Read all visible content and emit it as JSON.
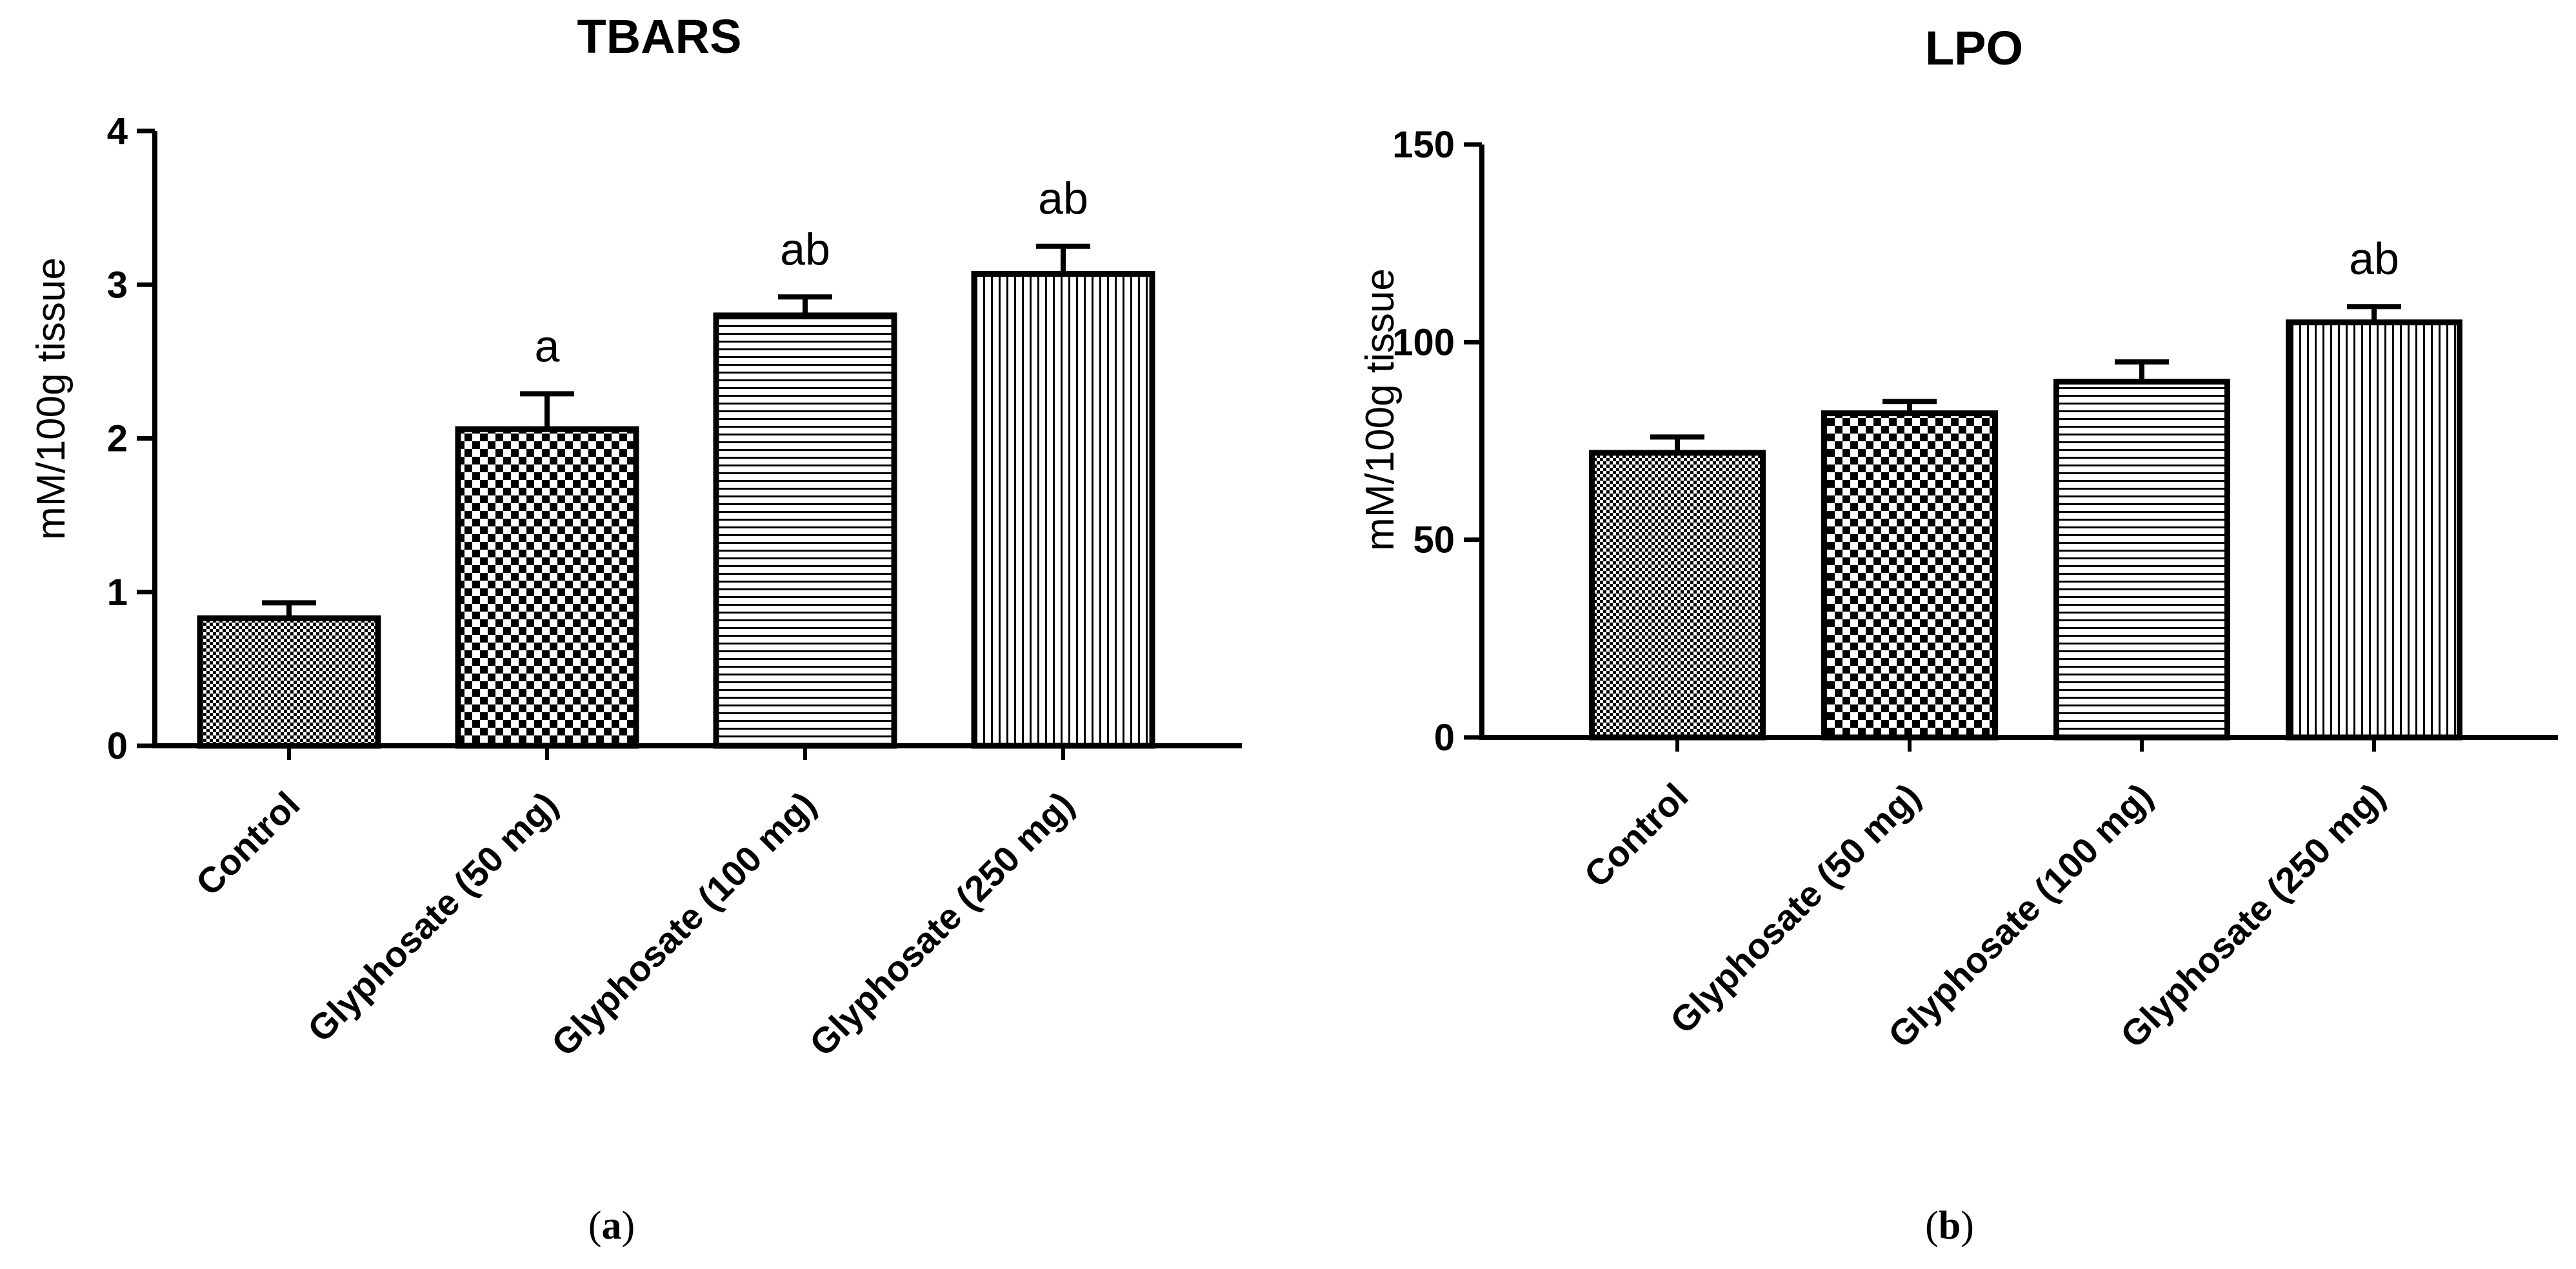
{
  "figure": {
    "panels": [
      {
        "caption_open": "(",
        "caption_letter": "a",
        "caption_close": ")"
      },
      {
        "caption_open": "(",
        "caption_letter": "b",
        "caption_close": ")"
      }
    ]
  },
  "chart_data": [
    {
      "type": "bar",
      "title": "TBARS",
      "xlabel": "",
      "ylabel": "mM/100g tissue",
      "ylim": [
        0,
        4
      ],
      "yticks": [
        0,
        1,
        2,
        3,
        4
      ],
      "categories": [
        "Control",
        "Glyphosate (50 mg)",
        "Glyphosate (100 mg)",
        "Glyphosate (250 mg)"
      ],
      "values": [
        0.83,
        2.06,
        2.8,
        3.07
      ],
      "errors": [
        0.1,
        0.23,
        0.12,
        0.18
      ],
      "patterns": [
        "fine-checker",
        "checker",
        "horizontal-lines",
        "vertical-lines"
      ],
      "significance": [
        "",
        "a",
        "ab",
        "ab"
      ]
    },
    {
      "type": "bar",
      "title": "LPO",
      "xlabel": "",
      "ylabel": "mM/100g tissue",
      "ylim": [
        0,
        150
      ],
      "yticks": [
        0,
        50,
        100,
        150
      ],
      "categories": [
        "Control",
        "Glyphosate (50 mg)",
        "Glyphosate (100 mg)",
        "Glyphosate (250 mg)"
      ],
      "values": [
        72,
        82,
        90,
        105
      ],
      "errors": [
        4,
        3,
        5,
        4
      ],
      "patterns": [
        "fine-checker",
        "checker",
        "horizontal-lines",
        "vertical-lines"
      ],
      "significance": [
        "",
        "",
        "",
        "ab"
      ]
    }
  ]
}
